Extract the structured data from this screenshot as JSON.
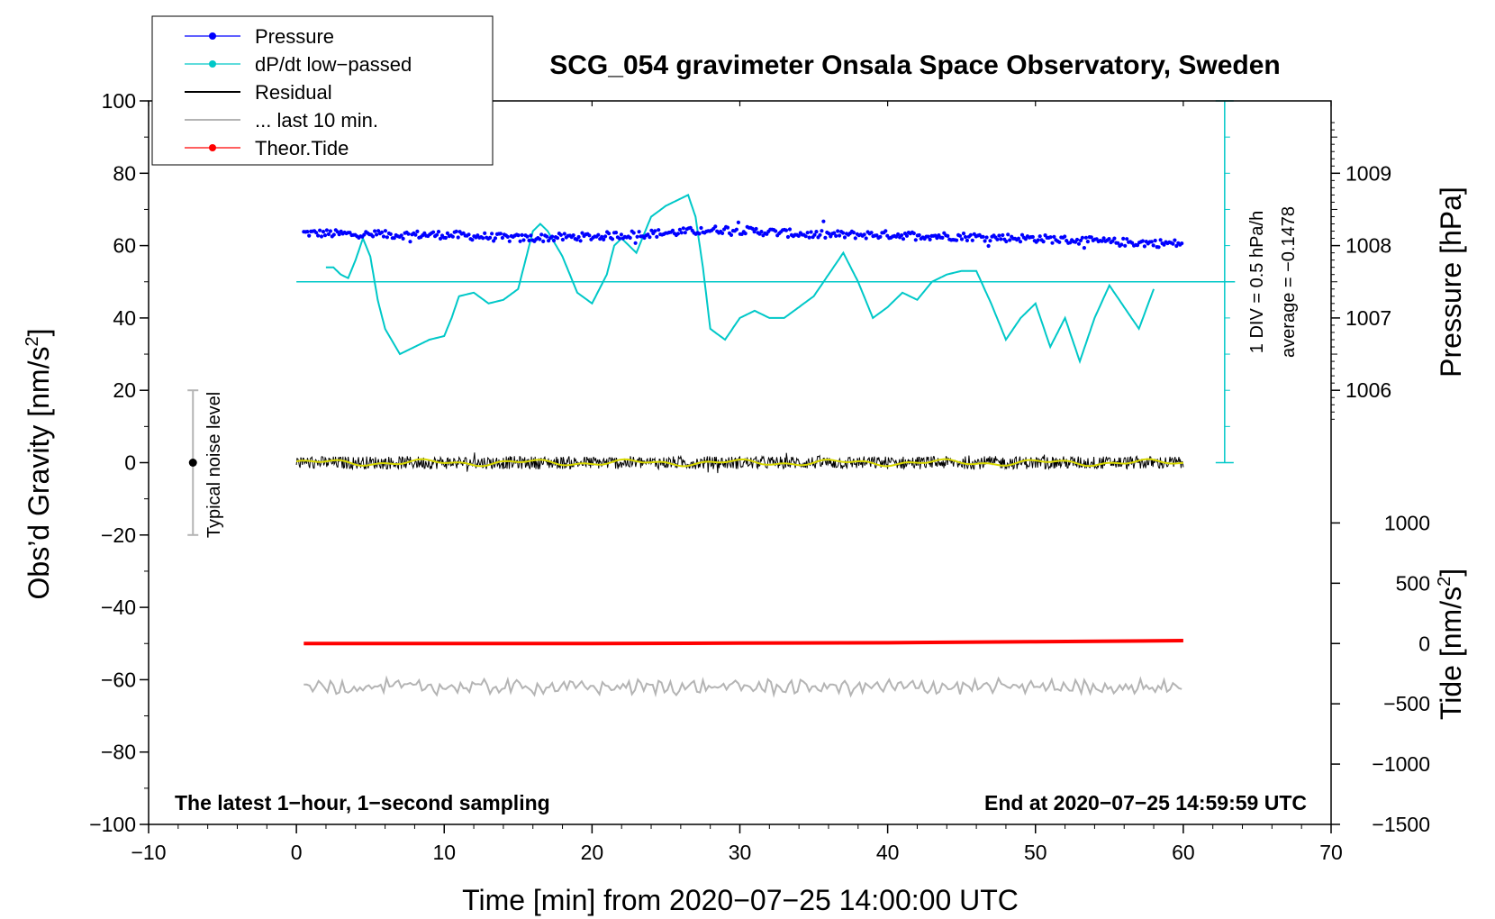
{
  "chart_data": {
    "type": "line",
    "title": "SCG_054 gravimeter Onsala Space Observatory, Sweden",
    "xlabel": "Time [min] from 2020−07−25 14:00:00 UTC",
    "ylabel_left_main": "Obs’d Gravity [nm/s",
    "ylabel_left_sup": "2",
    "ylabel_left_close": "]",
    "ylabel_right_pressure": "Pressure [hPa]",
    "ylabel_right_tide_main": "Tide [nm/s",
    "ylabel_right_tide_sup": "2",
    "ylabel_right_tide_close": "]",
    "xlim": [
      -10,
      70
    ],
    "ylim": [
      -100,
      100
    ],
    "x_ticks": [
      -10,
      0,
      10,
      20,
      30,
      40,
      50,
      60,
      70
    ],
    "x_tick_labels": [
      "−10",
      "0",
      "10",
      "20",
      "30",
      "40",
      "50",
      "60",
      "70"
    ],
    "y_ticks": [
      -100,
      -80,
      -60,
      -40,
      -20,
      0,
      20,
      40,
      60,
      80,
      100
    ],
    "y_tick_labels": [
      "−100",
      "−80",
      "−60",
      "−40",
      "−20",
      "0",
      "20",
      "40",
      "60",
      "80",
      "100"
    ],
    "pressure_axis": {
      "ticks": [
        1006,
        1007,
        1008,
        1009
      ],
      "tick_labels": [
        "1006",
        "1007",
        "1008",
        "1009"
      ],
      "gravity_of_1006": 20,
      "gravity_per_hpa": 20
    },
    "tide_axis": {
      "ticks": [
        -1500,
        -1000,
        -500,
        0,
        500,
        1000
      ],
      "tick_labels": [
        "−1500",
        "−1000",
        "−500",
        "0",
        "500",
        "1000"
      ],
      "gravity_of_0": -50,
      "gravity_per_1000": 33.33
    },
    "legend": {
      "position": "top-left",
      "entries": [
        {
          "label": "Pressure",
          "color": "#0000ff",
          "marker": true
        },
        {
          "label": "dP/dt low−passed",
          "color": "#00c8c8",
          "marker": true
        },
        {
          "label": "Residual",
          "color": "#000000",
          "marker": false
        },
        {
          "label": "... last 10 min.",
          "color": "#b4b4b4",
          "marker": false
        },
        {
          "label": "Theor.Tide",
          "color": "#ff0000",
          "marker": true
        }
      ]
    },
    "series": [
      {
        "name": "Pressure",
        "color": "#0000ff",
        "style": "dots",
        "x": [
          0.5,
          5,
          10,
          15,
          20,
          25,
          29,
          35,
          40,
          45,
          50,
          55,
          60
        ],
        "values": [
          63.5,
          63,
          63,
          62,
          62.5,
          63.5,
          64.5,
          63,
          63,
          62.5,
          62,
          61,
          60.5
        ]
      },
      {
        "name": "dP/dt low-passed",
        "color": "#00c8c8",
        "style": "line",
        "x": [
          2,
          2.5,
          3,
          3.5,
          4,
          4.5,
          5,
          5.5,
          6,
          7,
          8,
          9,
          10,
          10.5,
          11,
          12,
          13,
          14,
          15,
          15.5,
          16,
          16.5,
          17,
          18,
          19,
          20,
          21,
          21.5,
          22,
          23,
          23.5,
          24,
          25,
          26,
          26.5,
          27,
          27.5,
          28,
          29,
          30,
          31,
          32,
          33,
          34,
          35,
          36,
          37,
          38,
          39,
          40,
          41,
          42,
          43,
          44,
          45,
          46,
          47,
          48,
          49,
          50,
          51,
          52,
          53,
          54,
          55,
          56,
          57,
          58
        ],
        "values": [
          54,
          54,
          52,
          51,
          56,
          62,
          57,
          45,
          37,
          30,
          32,
          34,
          35,
          40,
          46,
          47,
          44,
          45,
          48,
          56,
          64,
          66,
          64,
          57,
          47,
          44,
          52,
          60,
          62,
          58,
          63,
          68,
          71,
          73,
          74,
          68,
          54,
          37,
          34,
          40,
          42,
          40,
          40,
          43,
          46,
          52,
          58,
          50,
          40,
          43,
          47,
          45,
          50,
          52,
          53,
          53,
          44,
          34,
          40,
          44,
          32,
          40,
          28,
          40,
          49,
          43,
          37,
          48
        ],
        "zero_line": 50,
        "scale_label": "1 DIV = 0.5 hPa/h",
        "average_label": "average = −0.1478"
      },
      {
        "name": "Residual",
        "color": "#000000",
        "style": "line",
        "x": [
          0,
          60
        ],
        "values": [
          0,
          0
        ],
        "amplitude": 1.8
      },
      {
        "name": "Residual low-pass",
        "color": "#d8d800",
        "style": "line",
        "x": [
          0,
          60
        ],
        "values": [
          0,
          0
        ]
      },
      {
        "name": "... last 10 min.",
        "color": "#b4b4b4",
        "style": "line",
        "x": [
          0.5,
          60
        ],
        "values": [
          -62,
          -62
        ],
        "amplitude": 1.5
      },
      {
        "name": "Theor.Tide",
        "color": "#ff0000",
        "style": "line",
        "x": [
          0.5,
          10,
          20,
          30,
          40,
          50,
          60
        ],
        "values": [
          -50,
          -50,
          -50,
          -49.9,
          -49.8,
          -49.5,
          -49.2
        ]
      }
    ],
    "noise_bar": {
      "x": -7,
      "center": 0,
      "low": -20,
      "high": 20,
      "label": "Typical noise level"
    },
    "footer_left": "The latest 1−hour, 1−second sampling",
    "footer_right": "End at 2020−07−25 14:59:59 UTC"
  },
  "colors": {
    "pressure": "#0000ff",
    "dpdt": "#00c8c8",
    "residual": "#000000",
    "last10": "#b4b4b4",
    "tide": "#ff0000",
    "residual_lp": "#d8d800"
  }
}
